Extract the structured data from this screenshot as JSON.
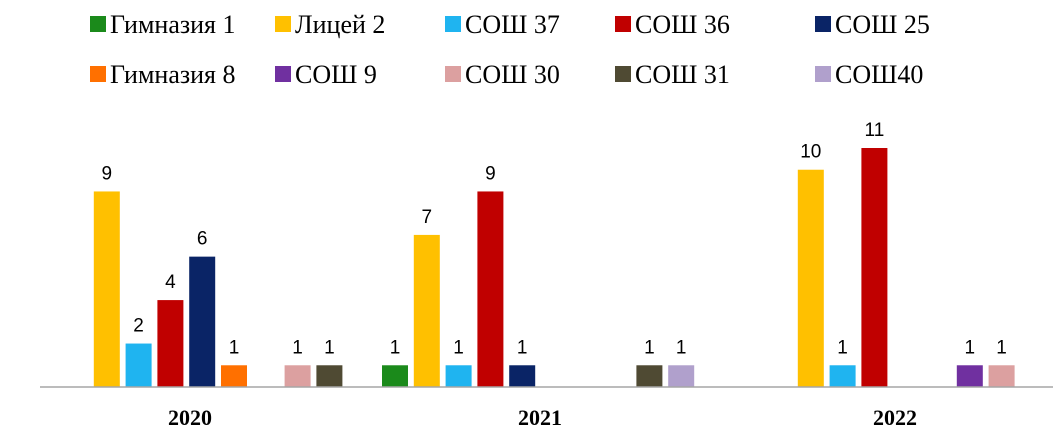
{
  "chart_data": {
    "type": "bar",
    "categories": [
      "2020",
      "2021",
      "2022"
    ],
    "series": [
      {
        "name": "Гимназия 1",
        "color": "#1b8a1b",
        "values": [
          null,
          1,
          null
        ]
      },
      {
        "name": "Лицей 2",
        "color": "#ffc000",
        "values": [
          9,
          7,
          10
        ]
      },
      {
        "name": "СОШ 37",
        "color": "#1fb4f0",
        "values": [
          2,
          1,
          1
        ]
      },
      {
        "name": "СОШ 36",
        "color": "#c00000",
        "values": [
          4,
          9,
          11
        ]
      },
      {
        "name": "СОШ 25",
        "color": "#0a2466",
        "values": [
          6,
          1,
          null
        ]
      },
      {
        "name": "Гимназия 8",
        "color": "#ff7000",
        "values": [
          1,
          null,
          null
        ]
      },
      {
        "name": "СОШ 9",
        "color": "#7030a0",
        "values": [
          null,
          null,
          1
        ]
      },
      {
        "name": "СОШ 30",
        "color": "#dca0a0",
        "values": [
          1,
          null,
          1
        ]
      },
      {
        "name": "СОШ 31",
        "color": "#4f4a33",
        "values": [
          1,
          1,
          null
        ]
      },
      {
        "name": "СОШ40",
        "color": "#b0a0cc",
        "values": [
          null,
          1,
          null
        ]
      }
    ],
    "ylim": [
      0,
      11
    ],
    "grid": false,
    "legend_position": "top"
  }
}
